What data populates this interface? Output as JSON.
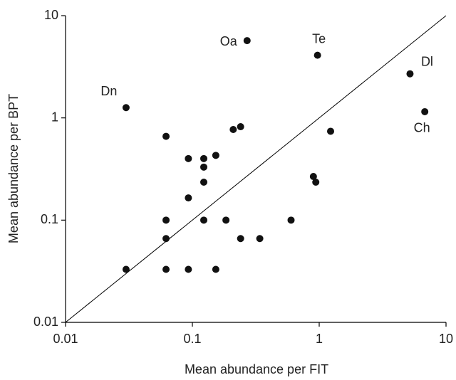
{
  "chart_data": {
    "type": "scatter",
    "x_label": "Mean abundance per FIT",
    "y_label": "Mean abundance per BPT",
    "x_scale": "log",
    "y_scale": "log",
    "xlim": [
      0.01,
      10
    ],
    "ylim": [
      0.01,
      10
    ],
    "xticks": [
      0.01,
      0.1,
      1,
      10
    ],
    "yticks": [
      0.01,
      0.1,
      1,
      10
    ],
    "color": "#111111",
    "x": [
      0.03,
      0.27,
      0.97,
      5.2,
      6.8,
      0.062,
      0.21,
      0.24,
      1.23,
      0.093,
      0.123,
      0.153,
      0.123,
      0.123,
      0.9,
      0.94,
      0.093,
      0.062,
      0.123,
      0.184,
      0.6,
      0.062,
      0.24,
      0.34,
      0.03,
      0.062,
      0.093,
      0.153
    ],
    "values": [
      1.26,
      5.7,
      4.1,
      2.7,
      1.15,
      0.66,
      0.77,
      0.82,
      0.74,
      0.4,
      0.4,
      0.43,
      0.33,
      0.235,
      0.267,
      0.235,
      0.165,
      0.1,
      0.1,
      0.1,
      0.1,
      0.066,
      0.066,
      0.066,
      0.033,
      0.033,
      0.033,
      0.033
    ],
    "point_labels": [
      "Dn",
      "Oa",
      "Te",
      "Dl",
      "Ch",
      null,
      null,
      null,
      null,
      null,
      null,
      null,
      null,
      null,
      null,
      null,
      null,
      null,
      null,
      null,
      null,
      null,
      null,
      null,
      null,
      null,
      null,
      null
    ]
  }
}
